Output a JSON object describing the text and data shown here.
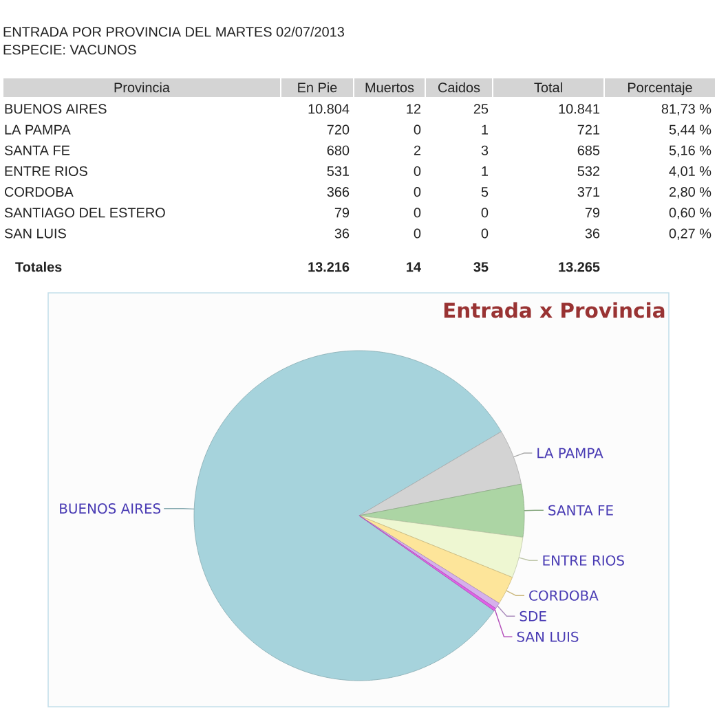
{
  "chart_data": [
    {
      "type": "other",
      "title": "ENTRADA POR PROVINCIA DEL MARTES 02/07/2013",
      "subtitle": "ESPECIE: VACUNOS",
      "ylabel": "Provincia",
      "categories": [
        "En Pie",
        "Muertos",
        "Caidos",
        "Total",
        "Porcentaje"
      ],
      "y_categories": [
        "BUENOS AIRES",
        "LA PAMPA",
        "SANTA FE",
        "ENTRE RIOS",
        "CORDOBA",
        "SANTIAGO DEL ESTERO",
        "SAN LUIS",
        "Totales"
      ],
      "cell_labels": [
        [
          "10.804",
          "12",
          "25",
          "10.841",
          "81,73 %"
        ],
        [
          "720",
          "0",
          "1",
          "721",
          "5,44 %"
        ],
        [
          "680",
          "2",
          "3",
          "685",
          "5,16 %"
        ],
        [
          "531",
          "0",
          "1",
          "532",
          "4,01 %"
        ],
        [
          "366",
          "0",
          "5",
          "371",
          "2,80 %"
        ],
        [
          "79",
          "0",
          "0",
          "79",
          "0,60 %"
        ],
        [
          "36",
          "0",
          "0",
          "36",
          "0,27 %"
        ],
        [
          "13.216",
          "14",
          "35",
          "13.265",
          null
        ]
      ]
    },
    {
      "type": "pie",
      "title": "Entrada x Provincia",
      "categories": [
        "BUENOS AIRES",
        "LA PAMPA",
        "SANTA FE",
        "ENTRE RIOS",
        "CORDOBA",
        "SDE",
        "SAN LUIS"
      ],
      "values": [
        81.73,
        5.44,
        5.16,
        4.01,
        2.8,
        0.6,
        0.27
      ],
      "colors": [
        "#a6d3dc",
        "#d3d3d3",
        "#acd5a4",
        "#eef7d2",
        "#fde59a",
        "#d6b0ec",
        "#e060e8"
      ]
    }
  ]
}
